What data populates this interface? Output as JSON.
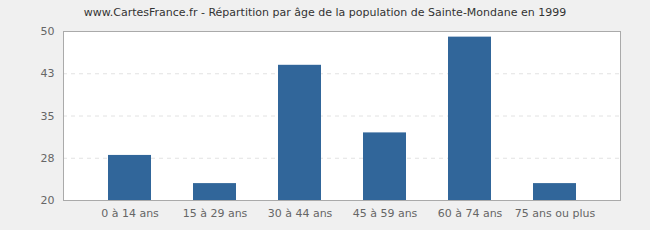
{
  "chart_data": {
    "type": "bar",
    "title": "www.CartesFrance.fr - Répartition par âge de la population de Sainte-Mondane en 1999",
    "categories": [
      "0 à 14 ans",
      "15 à 29 ans",
      "30 à 44 ans",
      "45 à 59 ans",
      "60 à 74 ans",
      "75 ans ou plus"
    ],
    "values": [
      28,
      23,
      44,
      32,
      49,
      23
    ],
    "color": "#31669a",
    "ylim": [
      20,
      50
    ],
    "yticks": [
      20,
      {
        "value": 27.5,
        "label": "28"
      },
      35,
      {
        "value": 42.5,
        "label": "43"
      },
      50
    ],
    "grid": true
  }
}
